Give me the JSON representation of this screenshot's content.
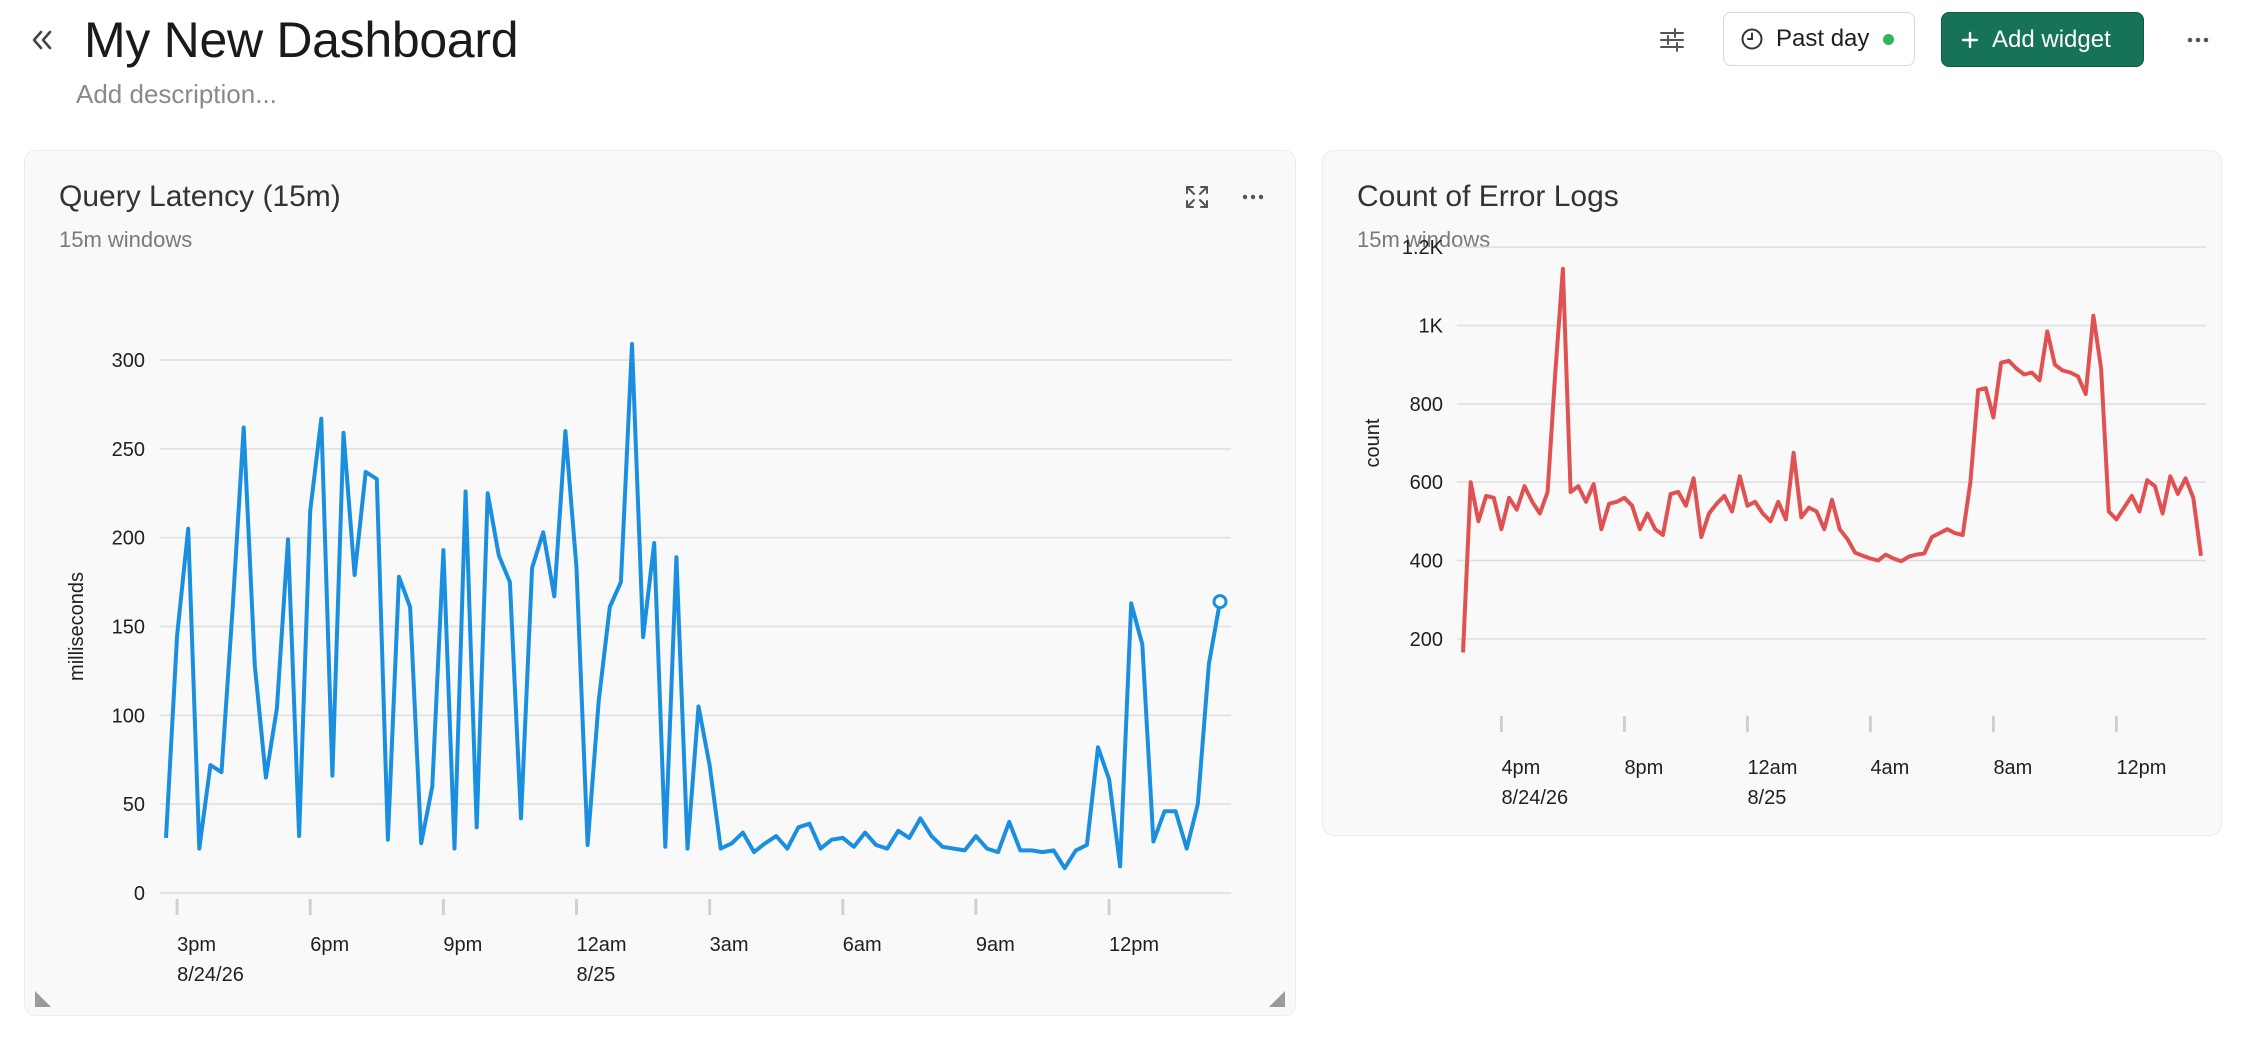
{
  "header": {
    "title": "My New Dashboard",
    "description_placeholder": "Add description...",
    "time_range_label": "Past day",
    "add_widget_label": "Add widget"
  },
  "icons": {
    "collapse": "double-chevron-left-icon",
    "filter": "sliders-icon",
    "clock": "clock-icon",
    "plus": "plus-icon",
    "more": "more-horizontal-icon",
    "expand": "expand-icon"
  },
  "colors": {
    "accent": "#17725a",
    "status": "#2fb55a",
    "series_latency": "#1a8fe0",
    "series_errors": "#e05252"
  },
  "widgets": [
    {
      "title": "Query Latency (15m)",
      "subtitle": "15m windows"
    },
    {
      "title": "Count of Error Logs",
      "subtitle": "15m windows"
    }
  ],
  "chart_data": [
    {
      "type": "line",
      "ylabel": "milliseconds",
      "ylim": [
        0,
        300
      ],
      "yticks": [
        0,
        50,
        100,
        150,
        200,
        250,
        300
      ],
      "ytick_labels": [
        "0",
        "50",
        "100",
        "150",
        "200",
        "250",
        "300"
      ],
      "xtick_labels": [
        [
          "3pm",
          "8/24/26"
        ],
        [
          "6pm",
          ""
        ],
        [
          "9pm",
          ""
        ],
        [
          "12am",
          "8/25"
        ],
        [
          "3am",
          ""
        ],
        [
          "6am",
          ""
        ],
        [
          "9am",
          ""
        ],
        [
          "12pm",
          ""
        ]
      ],
      "xtick_positions": [
        1,
        13,
        25,
        37,
        49,
        61,
        73,
        85
      ],
      "grid": true,
      "series": [
        {
          "values": [
            31,
            145,
            205,
            25,
            72,
            68,
            160,
            262,
            128,
            65,
            104,
            199,
            32,
            215,
            267,
            66,
            259,
            179,
            237,
            233,
            30,
            178,
            161,
            28,
            60,
            193,
            25,
            226,
            37,
            225,
            190,
            175,
            42,
            183,
            203,
            167,
            260,
            183,
            27,
            108,
            161,
            175,
            309,
            144,
            197,
            26,
            189,
            25,
            105,
            72,
            25,
            28,
            34,
            23,
            28,
            32,
            25,
            37,
            39,
            25,
            30,
            31,
            26,
            34,
            27,
            25,
            35,
            31,
            42,
            32,
            26,
            25,
            24,
            32,
            25,
            23,
            40,
            24,
            24,
            23,
            24,
            14,
            24,
            27,
            82,
            64,
            15,
            163,
            140,
            29,
            46,
            46,
            25,
            50,
            129,
            164
          ]
        }
      ]
    },
    {
      "type": "line",
      "ylabel": "count",
      "ylim": [
        100,
        1300
      ],
      "yticks": [
        200,
        400,
        600,
        800,
        1000,
        1200
      ],
      "ytick_labels": [
        "200",
        "400",
        "600",
        "800",
        "1K",
        "1.2K"
      ],
      "xtick_labels": [
        [
          "4pm",
          "8/24/26"
        ],
        [
          "8pm",
          ""
        ],
        [
          "12am",
          "8/25"
        ],
        [
          "4am",
          ""
        ],
        [
          "8am",
          ""
        ],
        [
          "12pm",
          ""
        ]
      ],
      "xtick_positions": [
        5,
        21,
        37,
        53,
        69,
        85
      ],
      "grid": true,
      "series": [
        {
          "values": [
            165,
            600,
            500,
            565,
            560,
            480,
            560,
            530,
            590,
            550,
            520,
            575,
            880,
            1145,
            575,
            590,
            550,
            595,
            480,
            545,
            550,
            560,
            540,
            480,
            520,
            480,
            465,
            570,
            575,
            540,
            610,
            460,
            520,
            545,
            565,
            525,
            615,
            540,
            550,
            520,
            500,
            550,
            505,
            675,
            510,
            535,
            525,
            480,
            555,
            480,
            455,
            420,
            412,
            405,
            400,
            415,
            405,
            398,
            410,
            415,
            418,
            460,
            470,
            480,
            470,
            465,
            600,
            835,
            840,
            765,
            905,
            910,
            890,
            875,
            880,
            860,
            985,
            900,
            885,
            880,
            870,
            825,
            1025,
            890,
            525,
            505,
            535,
            565,
            525,
            605,
            590,
            520,
            615,
            570,
            610,
            560,
            412
          ]
        }
      ]
    }
  ]
}
